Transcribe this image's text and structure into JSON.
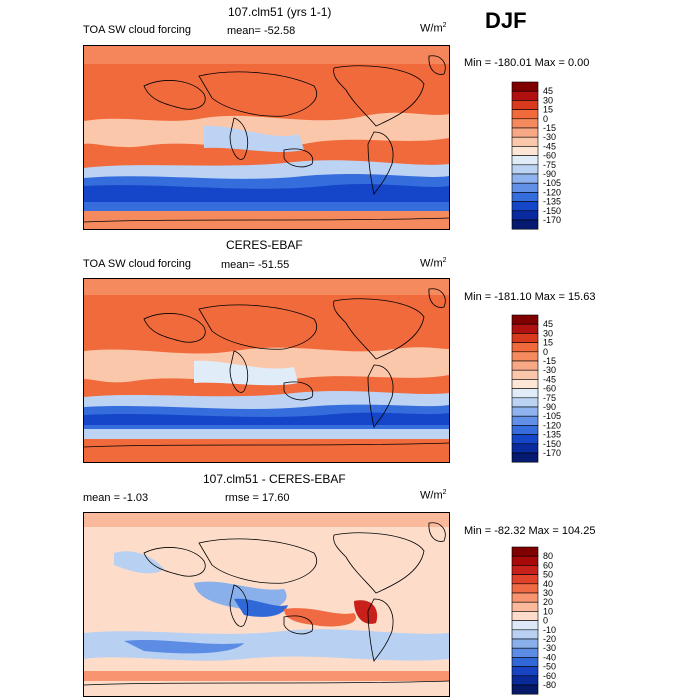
{
  "season": "DJF",
  "chart_data": [
    {
      "type": "heatmap",
      "title": "107.clm51 (yrs 1-1)",
      "variable": "TOA SW cloud forcing",
      "mean_text": "mean= -52.58",
      "unit_base": "W/m",
      "unit_exp": "2",
      "minmax_text": "Min = -180.01 Max =   0.00",
      "min": -180.01,
      "max": 0.0,
      "mean": -52.58,
      "colorbar": {
        "levels": [
          "45",
          "30",
          "15",
          "0",
          "-15",
          "-30",
          "-45",
          "-60",
          "-75",
          "-90",
          "-105",
          "-120",
          "-135",
          "-150",
          "-170"
        ],
        "colors": [
          "#800000",
          "#b01010",
          "#d93a1e",
          "#f06a3c",
          "#f58a5e",
          "#f9a886",
          "#fbc7ab",
          "#fde6d6",
          "#e1ecf9",
          "#bcd3f4",
          "#8fb3ee",
          "#6290e6",
          "#356ddc",
          "#1546c9",
          "#0a2aa0",
          "#061a70"
        ]
      }
    },
    {
      "type": "heatmap",
      "title": "CERES-EBAF",
      "variable": "TOA SW cloud forcing",
      "mean_text": "mean= -51.55",
      "unit_base": "W/m",
      "unit_exp": "2",
      "minmax_text": "Min = -181.10 Max =  15.63",
      "min": -181.1,
      "max": 15.63,
      "mean": -51.55,
      "colorbar": {
        "levels": [
          "45",
          "30",
          "15",
          "0",
          "-15",
          "-30",
          "-45",
          "-60",
          "-75",
          "-90",
          "-105",
          "-120",
          "-135",
          "-150",
          "-170"
        ],
        "colors": [
          "#800000",
          "#b01010",
          "#d93a1e",
          "#f06a3c",
          "#f58a5e",
          "#f9a886",
          "#fbc7ab",
          "#fde6d6",
          "#e1ecf9",
          "#bcd3f4",
          "#8fb3ee",
          "#6290e6",
          "#356ddc",
          "#1546c9",
          "#0a2aa0",
          "#061a70"
        ]
      }
    },
    {
      "type": "heatmap",
      "title": "107.clm51 - CERES-EBAF",
      "mean_text": "mean =   -1.03",
      "rmse_text": "rmse =   17.60",
      "unit_base": "W/m",
      "unit_exp": "2",
      "minmax_text": "Min = -82.32 Max = 104.25",
      "min": -82.32,
      "max": 104.25,
      "mean": -1.03,
      "rmse": 17.6,
      "colorbar": {
        "levels": [
          "80",
          "60",
          "50",
          "40",
          "30",
          "20",
          "10",
          "0",
          "-10",
          "-20",
          "-30",
          "-40",
          "-50",
          "-60",
          "-80"
        ],
        "colors": [
          "#800000",
          "#a80808",
          "#c8201a",
          "#e0432a",
          "#f06a44",
          "#f89470",
          "#fbb99c",
          "#fdddca",
          "#dde9f8",
          "#b8d0f2",
          "#8ab0ec",
          "#5c8ce4",
          "#3068d8",
          "#1844c4",
          "#0a2a98",
          "#061a68"
        ]
      }
    }
  ]
}
